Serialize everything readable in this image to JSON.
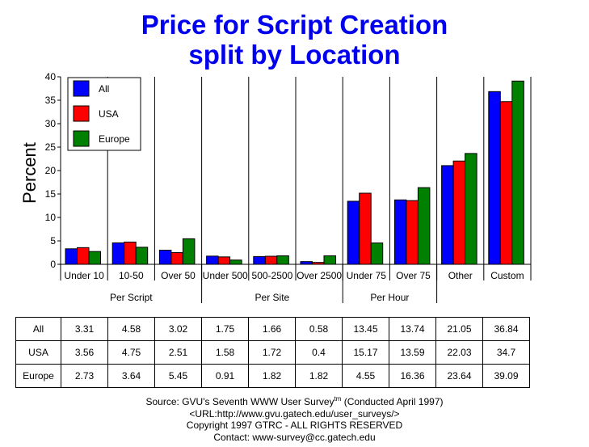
{
  "title_line1": "Price for Script Creation",
  "title_line2": "split by Location",
  "colors": {
    "All": "#0000ff",
    "USA": "#ff0000",
    "Europe": "#008000",
    "title": "#0000ee"
  },
  "chart_data": {
    "type": "bar",
    "ylabel": "Percent",
    "ylim": [
      0,
      40
    ],
    "yticks": [
      0,
      5,
      10,
      15,
      20,
      25,
      30,
      35,
      40
    ],
    "categories": [
      "Under 10",
      "10-50",
      "Over 50",
      "Under 500",
      "500-2500",
      "Over 2500",
      "Under 75",
      "Over 75",
      "Other",
      "Custom"
    ],
    "groups": [
      {
        "label": "Per Script",
        "span": [
          0,
          2
        ]
      },
      {
        "label": "Per Site",
        "span": [
          3,
          5
        ]
      },
      {
        "label": "Per Hour",
        "span": [
          6,
          7
        ]
      }
    ],
    "series": [
      {
        "name": "All",
        "values": [
          3.31,
          4.58,
          3.02,
          1.75,
          1.66,
          0.58,
          13.45,
          13.74,
          21.05,
          36.84
        ]
      },
      {
        "name": "USA",
        "values": [
          3.56,
          4.75,
          2.51,
          1.58,
          1.72,
          0.4,
          15.17,
          13.59,
          22.03,
          34.7
        ]
      },
      {
        "name": "Europe",
        "values": [
          2.73,
          3.64,
          5.45,
          0.91,
          1.82,
          1.82,
          4.55,
          16.36,
          23.64,
          39.09
        ]
      }
    ],
    "legend_position": "top-left",
    "grid": false
  },
  "table": {
    "rows": [
      {
        "label": "All",
        "values": [
          "3.31",
          "4.58",
          "3.02",
          "1.75",
          "1.66",
          "0.58",
          "13.45",
          "13.74",
          "21.05",
          "36.84"
        ]
      },
      {
        "label": "USA",
        "values": [
          "3.56",
          "4.75",
          "2.51",
          "1.58",
          "1.72",
          "0.4",
          "15.17",
          "13.59",
          "22.03",
          "34.7"
        ]
      },
      {
        "label": "Europe",
        "values": [
          "2.73",
          "3.64",
          "5.45",
          "0.91",
          "1.82",
          "1.82",
          "4.55",
          "16.36",
          "23.64",
          "39.09"
        ]
      }
    ]
  },
  "source": {
    "line1_pre": "Source: GVU's Seventh WWW User Survey",
    "line1_sup": "tm",
    "line1_post": " (Conducted April 1997)",
    "line2": "<URL:http://www.gvu.gatech.edu/user_surveys/>",
    "line3": "Copyright 1997 GTRC - ALL RIGHTS RESERVED",
    "line4": "Contact: www-survey@cc.gatech.edu"
  }
}
